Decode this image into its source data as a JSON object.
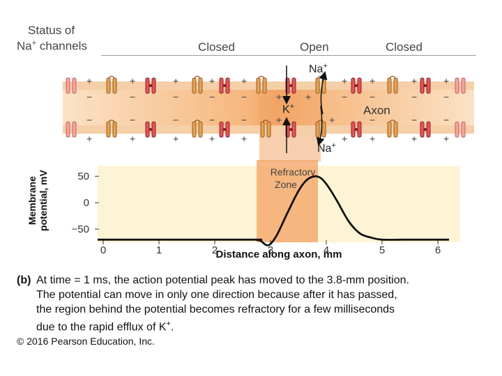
{
  "header": {
    "status_line1": "Status of",
    "status_line2_prefix": "Na",
    "status_line2_sup": "+",
    "status_line2_suffix": " channels",
    "closed_left": "Closed",
    "open": "Open",
    "closed_right": "Closed"
  },
  "membrane": {
    "ion_na_top": "Na",
    "ion_na_top_sup": "+",
    "ion_k": "K",
    "ion_k_sup": "+",
    "ion_na_bottom": "Na",
    "ion_na_bottom_sup": "+",
    "axon_label": "Axon",
    "plus_sign": "+",
    "minus_sign": "−"
  },
  "chart_data": {
    "type": "line",
    "title": "",
    "ylabel_line1": "Membrane",
    "ylabel_line2": "potential, mV",
    "xlabel": "Distance along axon, mm",
    "xlim": [
      -0.1,
      6.4
    ],
    "ylim": [
      -75,
      70
    ],
    "xticks": [
      0,
      1,
      2,
      3,
      4,
      5,
      6
    ],
    "xtick_labels": [
      "0",
      "1",
      "2",
      "3",
      "4",
      "5",
      "6"
    ],
    "yticks": [
      50,
      0,
      -50
    ],
    "ytick_labels": [
      "50",
      "0",
      "−50"
    ],
    "refractory_label_line1": "Refractory",
    "refractory_label_line2": "Zone",
    "refractory_range": [
      2.75,
      3.85
    ],
    "series": [
      {
        "name": "Membrane potential",
        "x": [
          -0.1,
          2.6,
          2.72,
          2.82,
          2.92,
          3.0,
          3.12,
          3.3,
          3.5,
          3.65,
          3.8,
          3.92,
          4.05,
          4.2,
          4.4,
          4.6,
          4.8,
          5.0,
          5.4,
          6.2
        ],
        "y": [
          -70,
          -70,
          -70,
          -72,
          -80,
          -78,
          -60,
          -20,
          22,
          43,
          50,
          45,
          28,
          2,
          -35,
          -58,
          -66,
          -70,
          -70,
          -70
        ]
      }
    ]
  },
  "caption": {
    "label": "(b)",
    "line1": "At time = 1 ms, the action potential peak has moved to the 3.8-mm position.",
    "line2": "The potential can move in only one direction because after it has passed,",
    "line3": "the region behind the potential becomes refractory for a few milliseconds",
    "line4_prefix": "due to the rapid efflux of K",
    "line4_sup": "+",
    "line4_suffix": "."
  },
  "copyright": "© 2016 Pearson Education, Inc."
}
